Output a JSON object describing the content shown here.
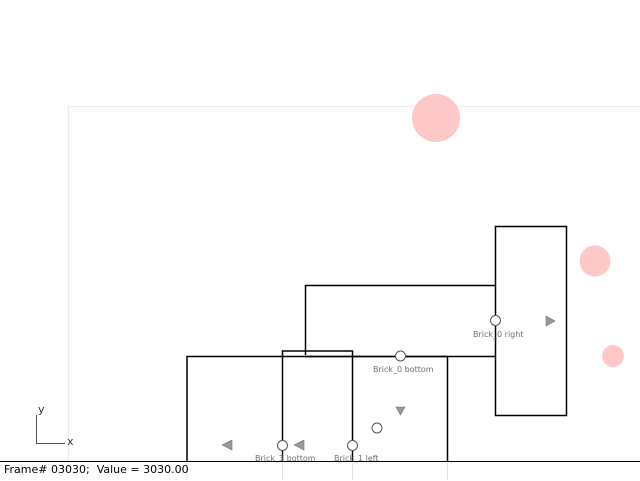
{
  "scene": {
    "axis": {
      "y_label": "y",
      "x_label": "x"
    },
    "labels": {
      "brick0_right": "Brick_0 right",
      "brick0_bottom": "Brick_0 bottom",
      "brick3_bottom": "Brick_3 bottom",
      "brick1_left": "Brick_1 left"
    },
    "colors": {
      "outline": "#000000",
      "marker": "#ffc8c8",
      "arrow": "#999999",
      "handle": "#ffffff"
    }
  },
  "status": {
    "frame_label": "Frame#",
    "frame": "03030;",
    "value_label": "Value =",
    "value": "3030.00"
  }
}
